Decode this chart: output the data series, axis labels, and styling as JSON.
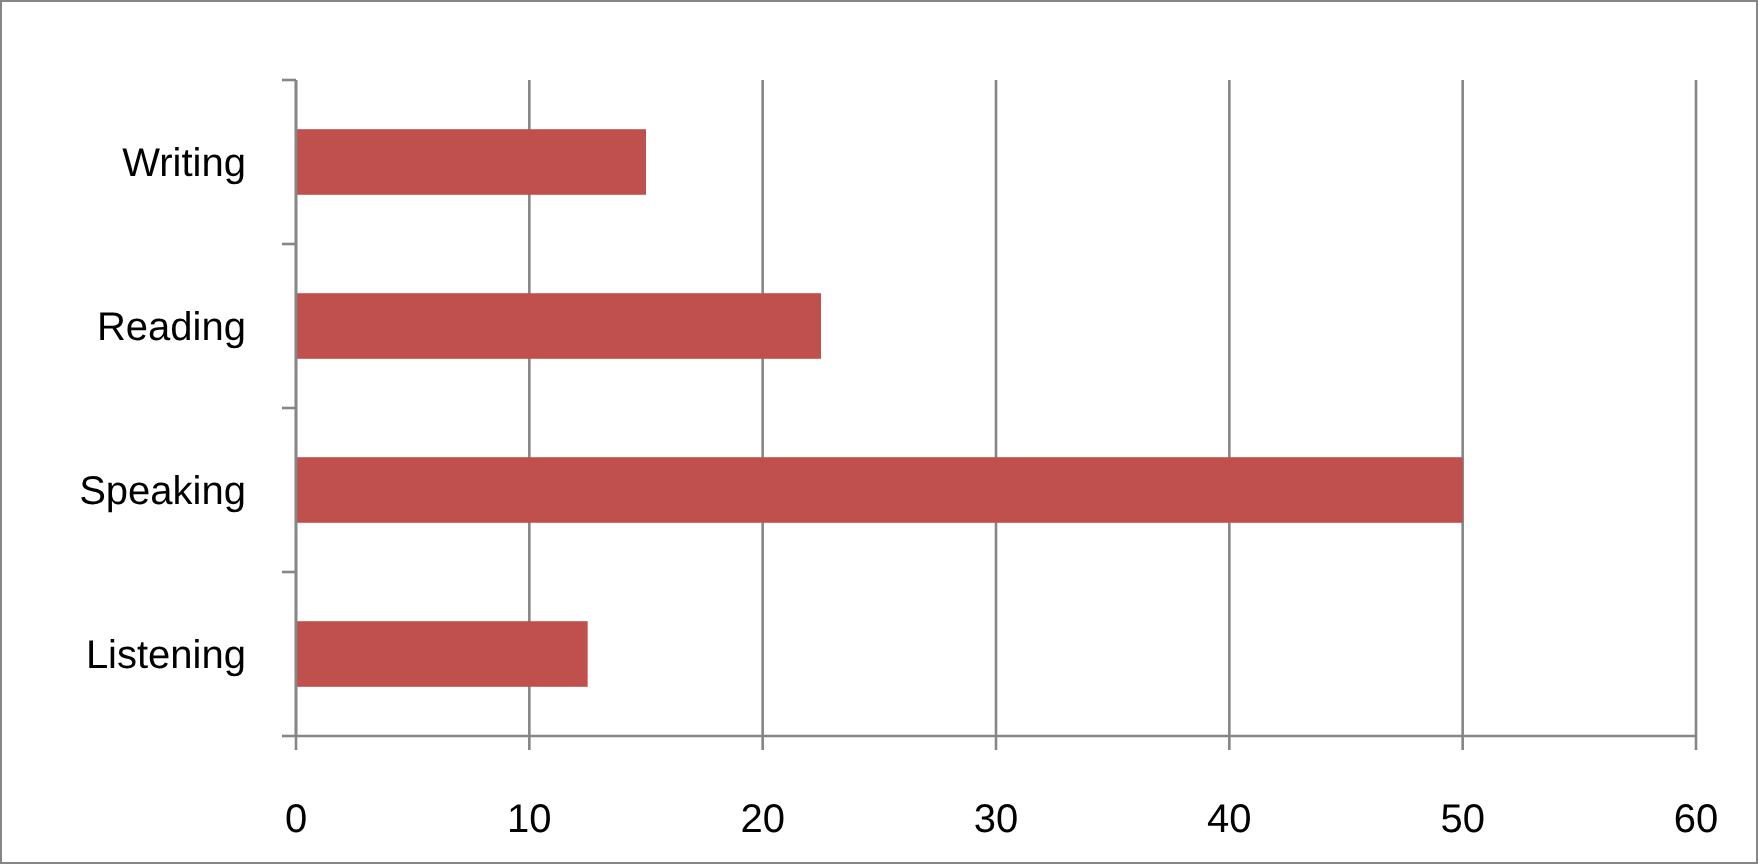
{
  "chart_data": {
    "type": "bar",
    "orientation": "horizontal",
    "categories": [
      "Writing",
      "Reading",
      "Speaking",
      "Listening"
    ],
    "values": [
      15,
      22.5,
      50,
      12.5
    ],
    "color": "#c0504d",
    "xlim": [
      0,
      60
    ],
    "xticks": [
      0,
      10,
      20,
      30,
      40,
      50,
      60
    ],
    "grid": "x"
  }
}
